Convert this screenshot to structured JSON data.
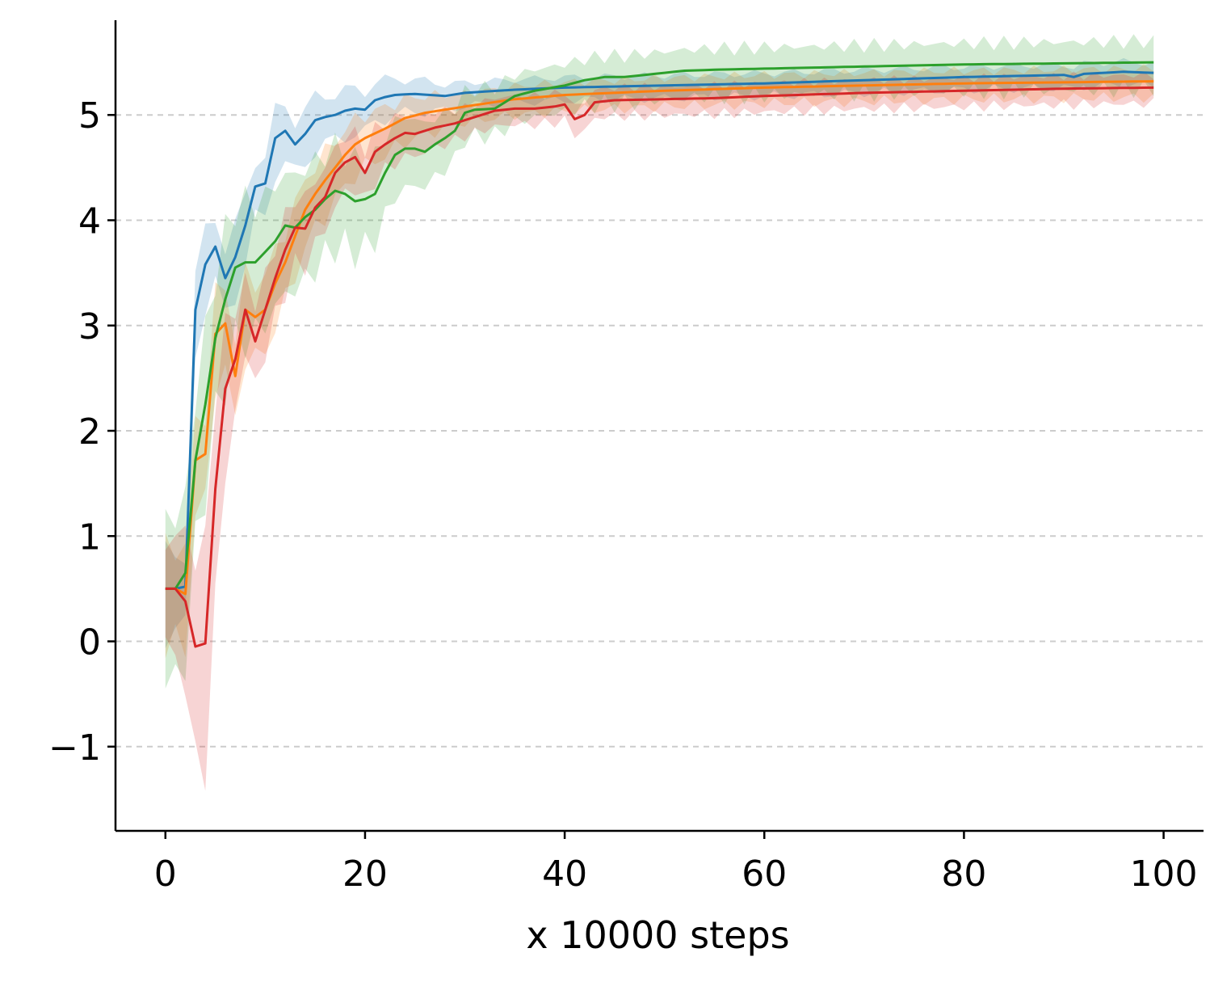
{
  "chart_data": {
    "type": "line",
    "title": "",
    "xlabel": "x 10000 steps",
    "ylabel": "",
    "xlim": [
      -5,
      104
    ],
    "ylim": [
      -1.8,
      5.9
    ],
    "xticks": [
      0,
      20,
      40,
      60,
      80,
      100
    ],
    "xtick_labels": [
      "0",
      "20",
      "40",
      "60",
      "80",
      "100"
    ],
    "yticks": [
      -1,
      0,
      1,
      2,
      3,
      4,
      5
    ],
    "ytick_labels": [
      "−1",
      "0",
      "1",
      "2",
      "3",
      "4",
      "5"
    ],
    "grid": "y-dashed",
    "legend": "none",
    "series": [
      {
        "color": "#1f77b4",
        "keypoints": [
          [
            0,
            0.5
          ],
          [
            1,
            0.5
          ],
          [
            2,
            0.52
          ],
          [
            3,
            3.15
          ],
          [
            4,
            3.58
          ],
          [
            5,
            3.75
          ],
          [
            6,
            3.45
          ],
          [
            7,
            3.65
          ],
          [
            8,
            3.95
          ],
          [
            9,
            4.32
          ],
          [
            10,
            4.35
          ],
          [
            11,
            4.78
          ],
          [
            12,
            4.85
          ],
          [
            13,
            4.72
          ],
          [
            14,
            4.82
          ],
          [
            15,
            4.95
          ],
          [
            16,
            4.98
          ],
          [
            17,
            5.0
          ],
          [
            18,
            5.04
          ],
          [
            19,
            5.06
          ],
          [
            20,
            5.05
          ],
          [
            21,
            5.14
          ],
          [
            22,
            5.17
          ],
          [
            23,
            5.19
          ],
          [
            25,
            5.2
          ],
          [
            28,
            5.18
          ],
          [
            30,
            5.21
          ],
          [
            35,
            5.24
          ],
          [
            40,
            5.26
          ],
          [
            50,
            5.28
          ],
          [
            60,
            5.3
          ],
          [
            70,
            5.33
          ],
          [
            80,
            5.36
          ],
          [
            90,
            5.38
          ],
          [
            91,
            5.36
          ],
          [
            92,
            5.39
          ],
          [
            96,
            5.41
          ],
          [
            99,
            5.4
          ]
        ],
        "band": 0.12
      },
      {
        "color": "#ff7f0e",
        "keypoints": [
          [
            0,
            0.5
          ],
          [
            1,
            0.5
          ],
          [
            2,
            0.45
          ],
          [
            3,
            1.72
          ],
          [
            4,
            1.78
          ],
          [
            5,
            2.92
          ],
          [
            6,
            3.02
          ],
          [
            7,
            2.52
          ],
          [
            8,
            3.15
          ],
          [
            9,
            3.08
          ],
          [
            10,
            3.15
          ],
          [
            11,
            3.4
          ],
          [
            12,
            3.6
          ],
          [
            13,
            3.85
          ],
          [
            14,
            4.1
          ],
          [
            15,
            4.25
          ],
          [
            16,
            4.38
          ],
          [
            17,
            4.5
          ],
          [
            18,
            4.62
          ],
          [
            19,
            4.72
          ],
          [
            20,
            4.78
          ],
          [
            22,
            4.87
          ],
          [
            24,
            4.97
          ],
          [
            26,
            5.02
          ],
          [
            28,
            5.05
          ],
          [
            30,
            5.08
          ],
          [
            35,
            5.15
          ],
          [
            40,
            5.19
          ],
          [
            45,
            5.21
          ],
          [
            50,
            5.23
          ],
          [
            60,
            5.26
          ],
          [
            70,
            5.28
          ],
          [
            80,
            5.3
          ],
          [
            90,
            5.31
          ],
          [
            99,
            5.32
          ]
        ],
        "band": 0.15
      },
      {
        "color": "#2ca02c",
        "keypoints": [
          [
            0,
            0.5
          ],
          [
            1,
            0.5
          ],
          [
            2,
            0.65
          ],
          [
            3,
            1.72
          ],
          [
            4,
            2.25
          ],
          [
            5,
            2.88
          ],
          [
            6,
            3.25
          ],
          [
            7,
            3.55
          ],
          [
            8,
            3.6
          ],
          [
            9,
            3.6
          ],
          [
            10,
            3.7
          ],
          [
            11,
            3.8
          ],
          [
            12,
            3.95
          ],
          [
            13,
            3.93
          ],
          [
            14,
            4.03
          ],
          [
            15,
            4.1
          ],
          [
            16,
            4.2
          ],
          [
            17,
            4.28
          ],
          [
            18,
            4.25
          ],
          [
            19,
            4.18
          ],
          [
            20,
            4.2
          ],
          [
            21,
            4.25
          ],
          [
            22,
            4.45
          ],
          [
            23,
            4.62
          ],
          [
            24,
            4.68
          ],
          [
            25,
            4.68
          ],
          [
            26,
            4.65
          ],
          [
            27,
            4.72
          ],
          [
            28,
            4.78
          ],
          [
            29,
            4.85
          ],
          [
            30,
            5.02
          ],
          [
            31,
            5.05
          ],
          [
            33,
            5.06
          ],
          [
            35,
            5.18
          ],
          [
            37,
            5.23
          ],
          [
            40,
            5.28
          ],
          [
            42,
            5.33
          ],
          [
            44,
            5.36
          ],
          [
            46,
            5.36
          ],
          [
            48,
            5.38
          ],
          [
            50,
            5.4
          ],
          [
            52,
            5.42
          ],
          [
            55,
            5.43
          ],
          [
            60,
            5.44
          ],
          [
            70,
            5.46
          ],
          [
            80,
            5.48
          ],
          [
            90,
            5.49
          ],
          [
            99,
            5.5
          ]
        ],
        "band": 0.25
      },
      {
        "color": "#d62728",
        "keypoints": [
          [
            0,
            0.5
          ],
          [
            1,
            0.5
          ],
          [
            2,
            0.38
          ],
          [
            3,
            -0.05
          ],
          [
            4,
            -0.02
          ],
          [
            5,
            1.45
          ],
          [
            6,
            2.4
          ],
          [
            7,
            2.68
          ],
          [
            8,
            3.15
          ],
          [
            9,
            2.85
          ],
          [
            10,
            3.15
          ],
          [
            11,
            3.45
          ],
          [
            12,
            3.72
          ],
          [
            13,
            3.93
          ],
          [
            14,
            3.92
          ],
          [
            15,
            4.12
          ],
          [
            16,
            4.22
          ],
          [
            17,
            4.45
          ],
          [
            18,
            4.55
          ],
          [
            19,
            4.6
          ],
          [
            20,
            4.45
          ],
          [
            21,
            4.65
          ],
          [
            22,
            4.72
          ],
          [
            23,
            4.78
          ],
          [
            24,
            4.83
          ],
          [
            25,
            4.82
          ],
          [
            27,
            4.88
          ],
          [
            29,
            4.92
          ],
          [
            31,
            4.98
          ],
          [
            33,
            5.04
          ],
          [
            35,
            5.06
          ],
          [
            37,
            5.06
          ],
          [
            39,
            5.08
          ],
          [
            40,
            5.1
          ],
          [
            41,
            4.96
          ],
          [
            42,
            5.0
          ],
          [
            43,
            5.12
          ],
          [
            45,
            5.14
          ],
          [
            50,
            5.15
          ],
          [
            55,
            5.16
          ],
          [
            60,
            5.18
          ],
          [
            70,
            5.21
          ],
          [
            80,
            5.23
          ],
          [
            90,
            5.25
          ],
          [
            99,
            5.26
          ]
        ],
        "band": 0.15
      }
    ]
  }
}
